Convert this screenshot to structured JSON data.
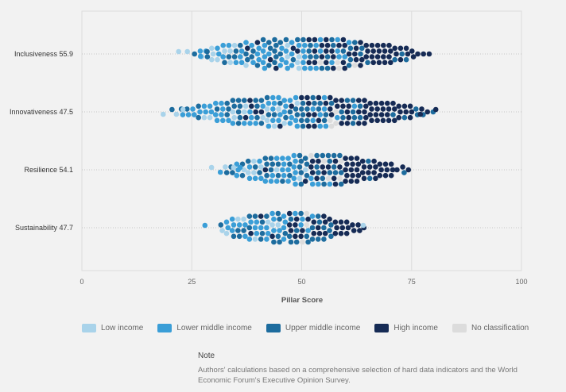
{
  "chart_data": {
    "type": "scatter",
    "xlabel": "Pillar Score",
    "xlim": [
      0,
      100
    ],
    "xticks": [
      0,
      25,
      50,
      75,
      100
    ],
    "grid": "vertical",
    "categories": [
      "Inclusiveness 55.9",
      "Innovativeness 47.5",
      "Resilience 54.1",
      "Sustainability 47.7"
    ],
    "income_groups": [
      {
        "name": "Low income",
        "color": "#a9d3ea"
      },
      {
        "name": "Lower middle income",
        "color": "#3a9ed7"
      },
      {
        "name": "Upper middle income",
        "color": "#1d6c9e"
      },
      {
        "name": "High income",
        "color": "#162b55"
      },
      {
        "name": "No classification",
        "color": "#dcdcdc"
      }
    ],
    "series": [
      {
        "category": "Inclusiveness 55.9",
        "range": [
          22,
          80
        ],
        "outliers": [
          {
            "x": 22,
            "group": 0
          },
          {
            "x": 24,
            "group": 0
          },
          {
            "x": 27,
            "group": 1
          },
          {
            "x": 28.5,
            "group": 2
          }
        ]
      },
      {
        "category": "Innovativeness 47.5",
        "range": [
          19,
          81
        ],
        "outliers": [
          {
            "x": 18.5,
            "group": 0
          },
          {
            "x": 20.5,
            "group": 2
          },
          {
            "x": 21.5,
            "group": 0
          },
          {
            "x": 23,
            "group": 0
          },
          {
            "x": 77,
            "group": 3
          },
          {
            "x": 80.5,
            "group": 3
          }
        ]
      },
      {
        "category": "Resilience 54.1",
        "range": [
          29,
          75
        ],
        "outliers": [
          {
            "x": 29.5,
            "group": 0
          },
          {
            "x": 31.5,
            "group": 1
          },
          {
            "x": 34.5,
            "group": 0
          },
          {
            "x": 36,
            "group": 1
          }
        ]
      },
      {
        "category": "Sustainability 47.7",
        "range": [
          28,
          65
        ],
        "outliers": [
          {
            "x": 28,
            "group": 1
          },
          {
            "x": 64,
            "group": 0
          }
        ]
      }
    ]
  },
  "legend": {
    "items": [
      {
        "label": "Low income",
        "color": "#a9d3ea"
      },
      {
        "label": "Lower middle income",
        "color": "#3a9ed7"
      },
      {
        "label": "Upper middle income",
        "color": "#1d6c9e"
      },
      {
        "label": "High income",
        "color": "#162b55"
      },
      {
        "label": "No classification",
        "color": "#dcdcdc"
      }
    ]
  },
  "note": {
    "title": "Note",
    "text": "Authors' calculations based on a comprehensive selection of hard data indicators and the World Economic Forum's Executive Opinion Survey."
  }
}
